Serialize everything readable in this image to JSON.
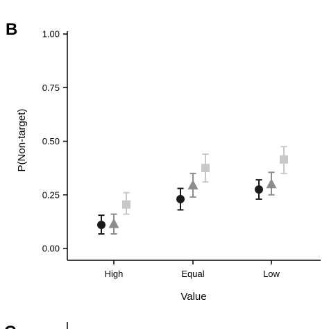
{
  "panel_label": "B",
  "next_panel_label": "C",
  "chart_data": {
    "type": "scatter",
    "xlabel": "Value",
    "ylabel": "P(Non-target)",
    "categories": [
      "High",
      "Equal",
      "Low"
    ],
    "ylim": [
      0.0,
      1.0
    ],
    "yticks": [
      "0.00",
      "0.25",
      "0.50",
      "0.75",
      "1.00"
    ],
    "grid": false,
    "legend": "none",
    "series": [
      {
        "marker": "circle",
        "color": "#1a1a1a",
        "values": [
          0.11,
          0.23,
          0.275
        ],
        "lower": [
          0.068,
          0.18,
          0.23
        ],
        "upper": [
          0.155,
          0.28,
          0.32
        ]
      },
      {
        "marker": "triangle",
        "color": "#8c8c8c",
        "values": [
          0.115,
          0.295,
          0.3
        ],
        "lower": [
          0.068,
          0.24,
          0.25
        ],
        "upper": [
          0.16,
          0.35,
          0.355
        ]
      },
      {
        "marker": "square",
        "color": "#c8c8c8",
        "values": [
          0.205,
          0.375,
          0.415
        ],
        "lower": [
          0.16,
          0.31,
          0.35
        ],
        "upper": [
          0.26,
          0.44,
          0.475
        ]
      }
    ]
  }
}
